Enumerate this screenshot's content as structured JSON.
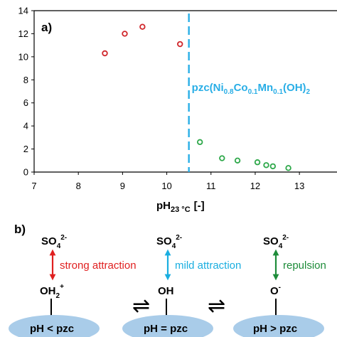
{
  "chart_data": {
    "type": "scatter",
    "panel_label": "a)",
    "xlabel": {
      "main": "pH",
      "sub": "23 °C",
      "unit": "[-]"
    },
    "ylabel": "",
    "xlim": [
      7,
      14
    ],
    "ylim": [
      0,
      14
    ],
    "x_ticks": [
      7,
      8,
      9,
      10,
      11,
      12,
      13
    ],
    "y_ticks": [
      0,
      2,
      4,
      6,
      8,
      10,
      12,
      14
    ],
    "grid": false,
    "series": [
      {
        "color": "#d0262b",
        "marker": "open-circle",
        "points": [
          {
            "x": 8.6,
            "y": 10.3
          },
          {
            "x": 9.05,
            "y": 12.0
          },
          {
            "x": 9.45,
            "y": 12.6
          },
          {
            "x": 10.3,
            "y": 11.1
          }
        ]
      },
      {
        "color": "#2ea84a",
        "marker": "open-circle",
        "points": [
          {
            "x": 10.75,
            "y": 2.6
          },
          {
            "x": 11.25,
            "y": 1.2
          },
          {
            "x": 11.6,
            "y": 1.0
          },
          {
            "x": 12.05,
            "y": 0.85
          },
          {
            "x": 12.25,
            "y": 0.6
          },
          {
            "x": 12.4,
            "y": 0.5
          },
          {
            "x": 12.75,
            "y": 0.35
          }
        ]
      }
    ],
    "vline": {
      "x": 10.5,
      "color": "#29aee6",
      "style": "dashed",
      "label": {
        "prefix": "pzc(Ni",
        "ni_sub": "0.8",
        "co": "Co",
        "co_sub": "0.1",
        "mn": "Mn",
        "mn_sub": "0.1",
        "tail": "(OH)",
        "tail_sub": "2"
      }
    }
  },
  "scheme": {
    "panel_label": "b)",
    "ion": {
      "main": "SO",
      "sub": "4",
      "sup": "2-"
    },
    "columns": [
      {
        "surface": {
          "main": "OH",
          "sub": "2",
          "sup": "+"
        },
        "interaction": "strong attraction",
        "color": "#e02020",
        "condition": "pH < pzc"
      },
      {
        "surface": {
          "main": "OH",
          "sub": "",
          "sup": ""
        },
        "interaction": "mild attraction",
        "color": "#1aaee0",
        "condition": "pH = pzc"
      },
      {
        "surface": {
          "main": "O",
          "sub": "",
          "sup": "-"
        },
        "interaction": "repulsion",
        "color": "#1e8c3a",
        "condition": "pH > pzc"
      }
    ],
    "equilibrium_symbol": "⇌",
    "oval_color": "#a9cce9"
  }
}
